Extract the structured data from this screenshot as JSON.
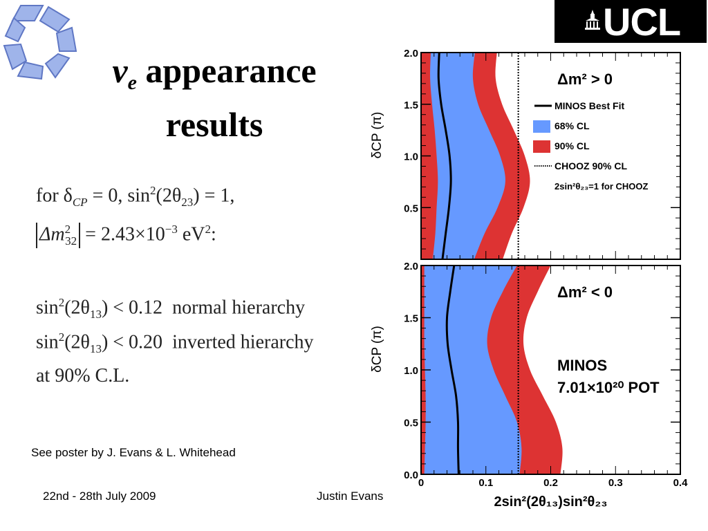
{
  "slide": {
    "title_symbol": "ν",
    "title_subscript": "e",
    "title_line1": " appearance",
    "title_line2": "results",
    "equations": {
      "line1": {
        "for": "for δ",
        "sub1": "CP",
        "mid": " = 0, sin",
        "sup1": "2",
        "par": "(2θ",
        "sub2": "23",
        "end": ") = 1,"
      },
      "line2": {
        "dm": "Δm",
        "sup": "2",
        "sub": "32",
        "mid": " = 2.43×10",
        "exp": "−3",
        "unit": " eV",
        "usup": "2",
        "end": ":"
      },
      "line3": {
        "pre": "sin",
        "sup": "2",
        "par": "(2θ",
        "sub": "13",
        "rel": ") < 0.12",
        "label": "normal hierarchy"
      },
      "line4": {
        "pre": "sin",
        "sup": "2",
        "par": "(2θ",
        "sub": "13",
        "rel": ") < 0.20",
        "label": "inverted hierarchy"
      },
      "line5": "at 90% C.L."
    },
    "poster_note": "See poster by J. Evans & L. Whitehead",
    "footer_date": "22nd - 28th July 2009",
    "footer_author": "Justin Evans",
    "logo_right_text": "UCL"
  },
  "colors": {
    "cl68": "#6699ff",
    "cl90": "#dd3333",
    "bestfit": "#000000"
  },
  "chart_data": [
    {
      "type": "area",
      "panel": "top",
      "annotation": "Δm² > 0",
      "ylabel": "δCP (π)",
      "xlabel": "",
      "xlim": [
        0,
        0.4
      ],
      "ylim": [
        0,
        2.0
      ],
      "y_ticks": [
        "0.5",
        "1.0",
        "1.5",
        "2.0"
      ],
      "legend": {
        "placement": "top-right",
        "entries": [
          "MINOS Best Fit",
          "68% CL",
          "90% CL",
          "CHOOZ 90% CL",
          "2sin²θ₂₃=1 for CHOOZ"
        ]
      },
      "chooz_limit_x": 0.15,
      "delta": [
        0,
        0.25,
        0.5,
        0.75,
        1.0,
        1.25,
        1.5,
        1.75,
        2.0
      ],
      "series": [
        {
          "name": "MINOS Best Fit",
          "x": [
            0.033,
            0.038,
            0.043,
            0.046,
            0.044,
            0.038,
            0.031,
            0.027,
            0.028
          ]
        },
        {
          "name": "68% CL",
          "lo": [
            0.018,
            0.022,
            0.024,
            0.026,
            0.024,
            0.021,
            0.017,
            0.014,
            0.015
          ],
          "hi": [
            0.082,
            0.098,
            0.118,
            0.13,
            0.122,
            0.105,
            0.088,
            0.08,
            0.083
          ]
        },
        {
          "name": "90% CL",
          "lo": [
            0.0,
            0.0,
            0.0,
            0.0,
            0.0,
            0.0,
            0.0,
            0.0,
            0.0
          ],
          "hi": [
            0.126,
            0.14,
            0.158,
            0.168,
            0.16,
            0.143,
            0.125,
            0.115,
            0.117
          ]
        }
      ]
    },
    {
      "type": "area",
      "panel": "bottom",
      "annotation": "Δm² < 0",
      "annotation2_line1": "MINOS",
      "annotation2_line2": "7.01×10²⁰ POT",
      "ylabel": "δCP (π)",
      "xlabel": "2sin²(2θ₁₃)sin²θ₂₃",
      "xlim": [
        0,
        0.4
      ],
      "ylim": [
        0,
        2.0
      ],
      "x_ticks": [
        "0",
        "0.1",
        "0.2",
        "0.3",
        "0.4"
      ],
      "y_ticks": [
        "0.0",
        "0.5",
        "1.0",
        "1.5",
        "2.0"
      ],
      "chooz_limit_x": 0.15,
      "delta": [
        0,
        0.25,
        0.5,
        0.75,
        1.0,
        1.25,
        1.5,
        1.75,
        2.0
      ],
      "series": [
        {
          "name": "MINOS Best Fit",
          "x": [
            0.058,
            0.057,
            0.057,
            0.054,
            0.047,
            0.041,
            0.04,
            0.045,
            0.051
          ]
        },
        {
          "name": "68% CL",
          "lo": [
            0.005,
            0.006,
            0.007,
            0.007,
            0.006,
            0.005,
            0.005,
            0.005,
            0.005
          ],
          "hi": [
            0.152,
            0.155,
            0.148,
            0.13,
            0.112,
            0.102,
            0.108,
            0.126,
            0.148
          ]
        },
        {
          "name": "90% CL",
          "lo": [
            0.0,
            0.0,
            0.0,
            0.0,
            0.0,
            0.0,
            0.0,
            0.0,
            0.0
          ],
          "hi": [
            0.215,
            0.218,
            0.208,
            0.188,
            0.168,
            0.158,
            0.163,
            0.18,
            0.2
          ]
        }
      ]
    }
  ]
}
